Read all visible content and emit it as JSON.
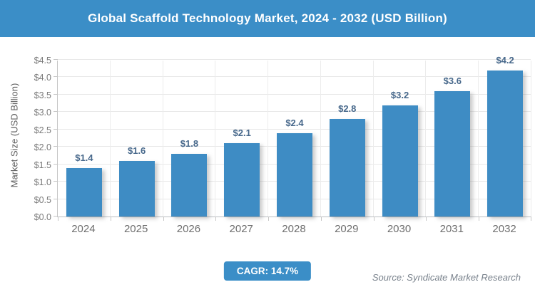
{
  "header": {
    "title": "Global Scaffold Technology Market, 2024 - 2032 (USD Billion)"
  },
  "chart_data": {
    "type": "bar",
    "title": "Global Scaffold Technology Market, 2024 - 2032 (USD Billion)",
    "categories": [
      "2024",
      "2025",
      "2026",
      "2027",
      "2028",
      "2029",
      "2030",
      "2031",
      "2032"
    ],
    "values": [
      1.4,
      1.6,
      1.8,
      2.1,
      2.4,
      2.8,
      3.2,
      3.6,
      4.2
    ],
    "bar_labels": [
      "$1.4",
      "$1.6",
      "$1.8",
      "$2.1",
      "$2.4",
      "$2.8",
      "$3.2",
      "$3.6",
      "$4.2"
    ],
    "xlabel": "",
    "ylabel": "Market Size (USD Billion)",
    "ylim": [
      0,
      4.5
    ],
    "ytick_step": 0.5,
    "yticks": [
      "$0.0",
      "$0.5",
      "$1.0",
      "$1.5",
      "$2.0",
      "$2.5",
      "$3.0",
      "$3.5",
      "$4.0",
      "$4.5"
    ],
    "grid": true,
    "legend_position": "none",
    "bar_color": "#3E8CC4"
  },
  "footer": {
    "cagr_label": "CAGR: 14.7%",
    "source": "Source: Syndicate Market Research"
  },
  "colors": {
    "header_bg": "#3B8EC7",
    "badge_bg": "#3B8EC7",
    "bar": "#3E8CC4",
    "value_label": "#47688B",
    "axis_text": "#7A7A7A",
    "gridline": "#E8E8E8"
  }
}
